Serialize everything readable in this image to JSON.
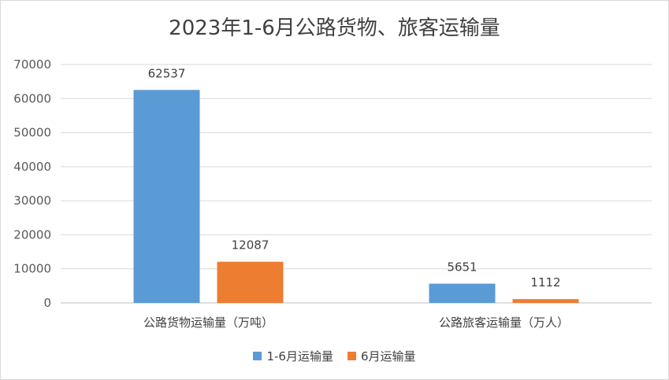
{
  "chart_data": {
    "type": "bar",
    "title": "2023年1-6月公路货物、旅客运输量",
    "categories": [
      "公路货物运输量（万吨）",
      "公路旅客运输量（万人）"
    ],
    "series": [
      {
        "name": "1-6月运输量",
        "values": [
          62537,
          5651
        ],
        "color": "#5b9bd5"
      },
      {
        "name": "6月运输量",
        "values": [
          12087,
          1112
        ],
        "color": "#ed7d31"
      }
    ],
    "ylim": [
      0,
      70000
    ],
    "yticks": [
      "0",
      "10000",
      "20000",
      "30000",
      "40000",
      "50000",
      "60000",
      "70000"
    ],
    "grid": true,
    "legend": "bottom",
    "xlabel": "",
    "ylabel": ""
  }
}
